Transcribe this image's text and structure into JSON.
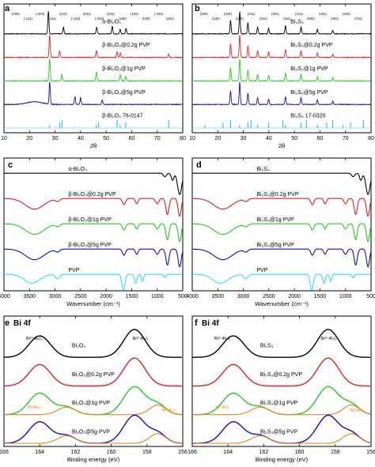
{
  "chart_data": [
    {
      "panel": "a",
      "type": "line",
      "xlabel": "2θ",
      "xlim": [
        10,
        80
      ],
      "xticks": [
        10,
        20,
        30,
        40,
        50,
        60,
        70,
        80
      ],
      "series": [
        {
          "name": "α-Bi₂O₃",
          "color": "#000000",
          "peaks": [
            [
              27.4,
              1.0
            ],
            [
              33.3,
              0.3
            ],
            [
              46.3,
              0.3
            ],
            [
              52.4,
              0.35
            ],
            [
              55.5,
              0.2
            ],
            [
              57.8,
              0.25
            ]
          ]
        },
        {
          "name": "β-Bi₂O₃@0.2g PVP",
          "color": "#e02020",
          "peaks": [
            [
              27.9,
              1.0
            ],
            [
              31.8,
              0.3
            ],
            [
              46.2,
              0.3
            ],
            [
              54.3,
              0.25
            ],
            [
              55.6,
              0.2
            ],
            [
              74.5,
              0.15
            ]
          ]
        },
        {
          "name": "β-Bi₂O₃@1g PVP",
          "color": "#22cc22",
          "peaks": [
            [
              27.9,
              1.0
            ],
            [
              32.7,
              0.3
            ],
            [
              46.2,
              0.4
            ],
            [
              55.5,
              0.3
            ],
            [
              57.7,
              0.2
            ]
          ]
        },
        {
          "name": "β-Bi₂O₃@5g PVP",
          "color": "#1010c0",
          "peaks": [
            [
              27.9,
              1.0
            ],
            [
              37.8,
              0.35
            ],
            [
              40.0,
              0.3
            ],
            [
              48.5,
              0.2
            ]
          ]
        },
        {
          "name": "β-Bi₂O₃ 76-0147",
          "color": "#30c8e8",
          "sticks": [
            27.9,
            31.8,
            32.7,
            46.2,
            47.0,
            54.3,
            55.5,
            57.7,
            74.5
          ]
        }
      ],
      "peak_labels": [
        "(020)",
        "(-121)",
        "(-202)",
        "(-131)",
        "(212)",
        "(-132)",
        "(041)",
        "(-233)",
        "(241)",
        "(150)",
        "(104)",
        "(016)",
        "(-161)",
        "(201)",
        "(002)",
        "(220)",
        "(222)",
        "(400)",
        "(213)",
        "(402)",
        "(423)",
        "(012)",
        "(104)",
        "(110)",
        "(202)"
      ],
      "axis_label_a": "a"
    },
    {
      "panel": "b",
      "type": "line",
      "xlabel": "2θ",
      "xlim": [
        10,
        80
      ],
      "xticks": [
        10,
        20,
        30,
        40,
        50,
        60,
        70,
        80
      ],
      "series": [
        {
          "name": "Bi₂S₃",
          "color": "#000000"
        },
        {
          "name": "Bi₂S₃@0.2g PVP",
          "color": "#e02020"
        },
        {
          "name": "Bi₂S₃@1g PVP",
          "color": "#22cc22"
        },
        {
          "name": "Bi₂S₃@5g PVP",
          "color": "#1010c0"
        },
        {
          "name": "Bi₂S₃ 17-0320",
          "color": "#30c8e8"
        }
      ],
      "peak_labels": [
        "(020)",
        "(120)",
        "(220)",
        "(130)",
        "(211)",
        "(221)",
        "(301)",
        "(311)",
        "(141)",
        "(002)",
        "(431)",
        "(351)",
        "(242)",
        "(721)",
        "(741)",
        "(151)",
        "(061)",
        "(104)",
        "(252)"
      ]
    },
    {
      "panel": "c",
      "type": "line",
      "xlabel": "Wavenumber (cm⁻¹)",
      "xlim": [
        4000,
        500
      ],
      "xticks": [
        4000,
        3500,
        3000,
        2500,
        2000,
        1500,
        1000,
        500
      ],
      "series": [
        {
          "name": "α-Bi₂O₃",
          "color": "#000000"
        },
        {
          "name": "β-Bi₂O₃@0.2g PVP",
          "color": "#e02020"
        },
        {
          "name": "β-Bi₂O₃@1g PVP",
          "color": "#22cc22"
        },
        {
          "name": "β-Bi₂O₃@5g PVP",
          "color": "#1010c0"
        },
        {
          "name": "PVP",
          "color": "#30e0f0"
        }
      ]
    },
    {
      "panel": "d",
      "type": "line",
      "xlabel": "Wavenumber (cm⁻¹)",
      "xlim": [
        4000,
        500
      ],
      "xticks": [
        4000,
        3500,
        3000,
        2500,
        2000,
        1500,
        1000,
        500
      ],
      "series": [
        {
          "name": "Bi₂S₃",
          "color": "#000000"
        },
        {
          "name": "Bi₂S₃@0.2g PVP",
          "color": "#e02020"
        },
        {
          "name": "Bi₂S₃@1g PVP",
          "color": "#22cc22"
        },
        {
          "name": "Bi₂S₃@5g PVP",
          "color": "#1010c0"
        },
        {
          "name": "PVP",
          "color": "#30e0f0"
        }
      ]
    },
    {
      "panel": "e",
      "title": "Bi 4f",
      "type": "line",
      "xlabel": "Binding energy (eV)",
      "xlim": [
        166,
        156
      ],
      "xticks": [
        166,
        164,
        162,
        160,
        158,
        156
      ],
      "peaks_eV": [
        164.0,
        158.7
      ],
      "series": [
        {
          "name": "Bi₂O₃",
          "color": "#000000"
        },
        {
          "name": "Bi₂O₃@0.2g PVP",
          "color": "#e02020"
        },
        {
          "name": "Bi₂O₃@1g PVP",
          "color": "#22cc22"
        },
        {
          "name": "Bi₂O₃@5g PVP",
          "color": "#1010c0"
        }
      ],
      "peak_labels": [
        "Bi³⁺4f₅/₂",
        "Bi³⁺4f₇/₂",
        "Bi⁰4f₅/₂",
        "Bi⁰4f₇/₂"
      ]
    },
    {
      "panel": "f",
      "title": "Bi 4f",
      "type": "line",
      "xlabel": "Binding energy (eV)",
      "xlim": [
        166,
        156
      ],
      "xticks": [
        166,
        164,
        162,
        160,
        158,
        156
      ],
      "peaks_eV": [
        163.7,
        158.4
      ],
      "series": [
        {
          "name": "Bi₂S₃",
          "color": "#000000"
        },
        {
          "name": "Bi₂S₃@0.2g PVP",
          "color": "#e02020"
        },
        {
          "name": "Bi₂S₃@1g PVP",
          "color": "#22cc22"
        },
        {
          "name": "Bi₂S₃@5g PVP",
          "color": "#1010c0"
        }
      ],
      "peak_labels": [
        "Bi³⁺4f₅/₂",
        "Bi³⁺4f₇/₂",
        "Bi⁰4f₅/₂",
        "Bi⁰4f₇/₂"
      ]
    }
  ],
  "panel_letters": [
    "a",
    "b",
    "c",
    "d",
    "e",
    "f"
  ]
}
